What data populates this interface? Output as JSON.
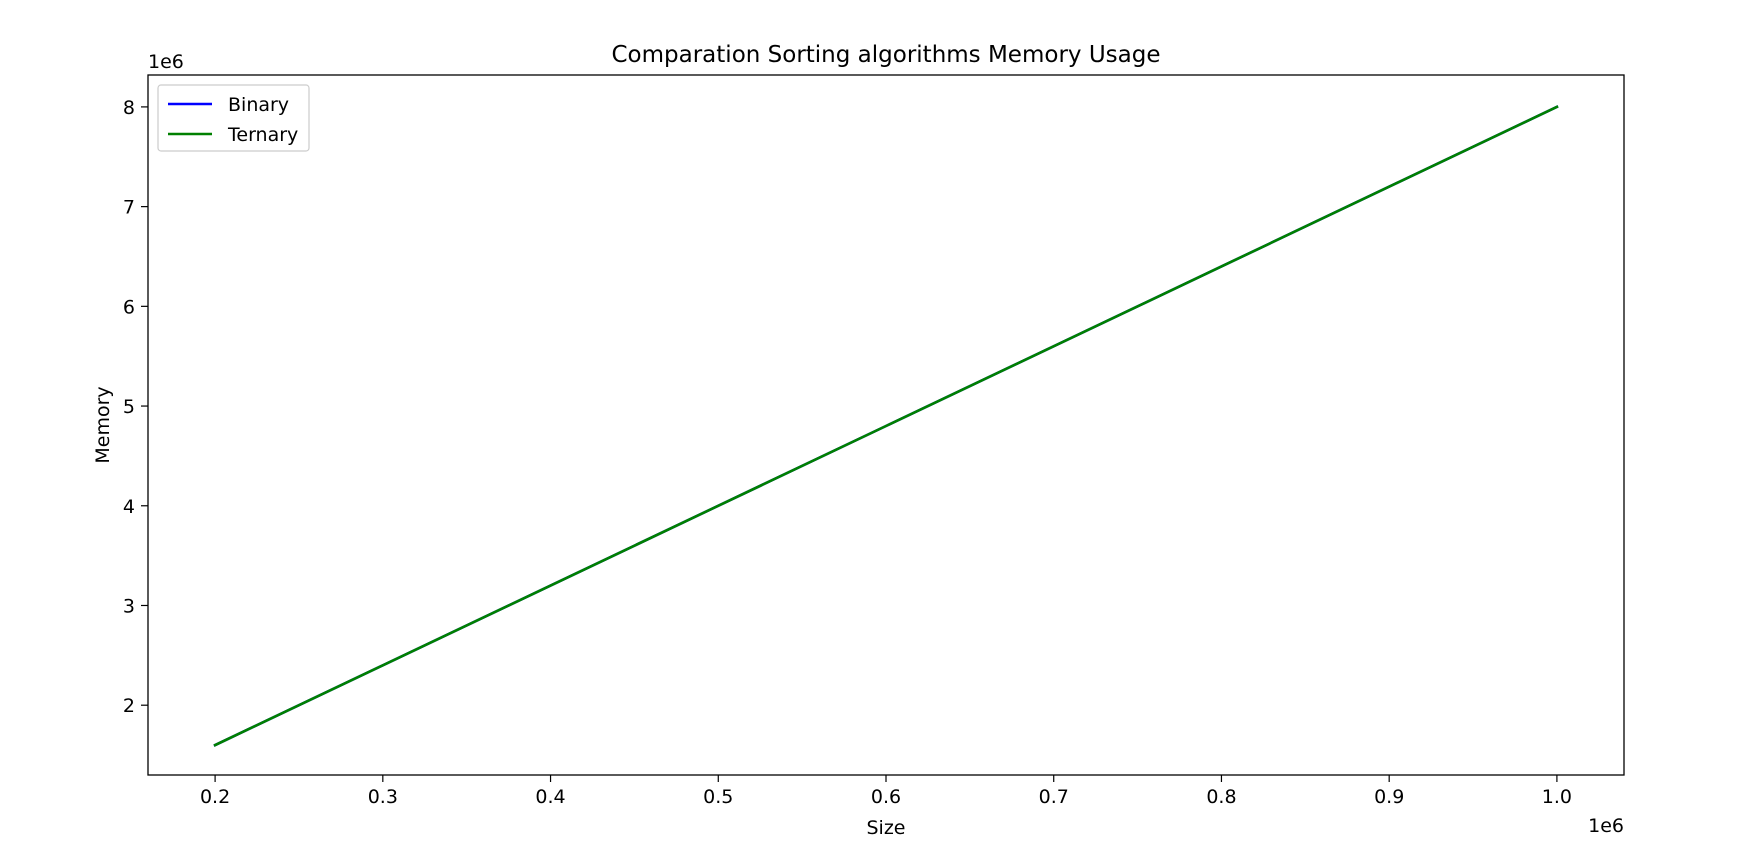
{
  "chart_data": {
    "type": "line",
    "title": "Comparation Sorting algorithms Memory Usage",
    "xlabel": "Size",
    "ylabel": "Memory",
    "x_offset_label": "1e6",
    "y_offset_label": "1e6",
    "xlim": [
      0.16,
      1.04
    ],
    "ylim": [
      1.3,
      8.32
    ],
    "x_ticks": [
      0.2,
      0.3,
      0.4,
      0.5,
      0.6,
      0.7,
      0.8,
      0.9,
      1.0
    ],
    "x_tick_labels": [
      "0.2",
      "0.3",
      "0.4",
      "0.5",
      "0.6",
      "0.7",
      "0.8",
      "0.9",
      "1.0"
    ],
    "y_ticks": [
      2,
      3,
      4,
      5,
      6,
      7,
      8
    ],
    "y_tick_labels": [
      "2",
      "3",
      "4",
      "5",
      "6",
      "7",
      "8"
    ],
    "grid": false,
    "legend_position": "upper-left",
    "series": [
      {
        "name": "Binary",
        "color": "#0000ff",
        "x": [
          0.2,
          0.4,
          0.6,
          0.8,
          1.0
        ],
        "y": [
          1.6,
          3.2,
          4.8,
          6.4,
          8.0
        ]
      },
      {
        "name": "Ternary",
        "color": "#008000",
        "x": [
          0.2,
          0.4,
          0.6,
          0.8,
          1.0
        ],
        "y": [
          1.6,
          3.2,
          4.8,
          6.4,
          8.0
        ]
      }
    ]
  }
}
